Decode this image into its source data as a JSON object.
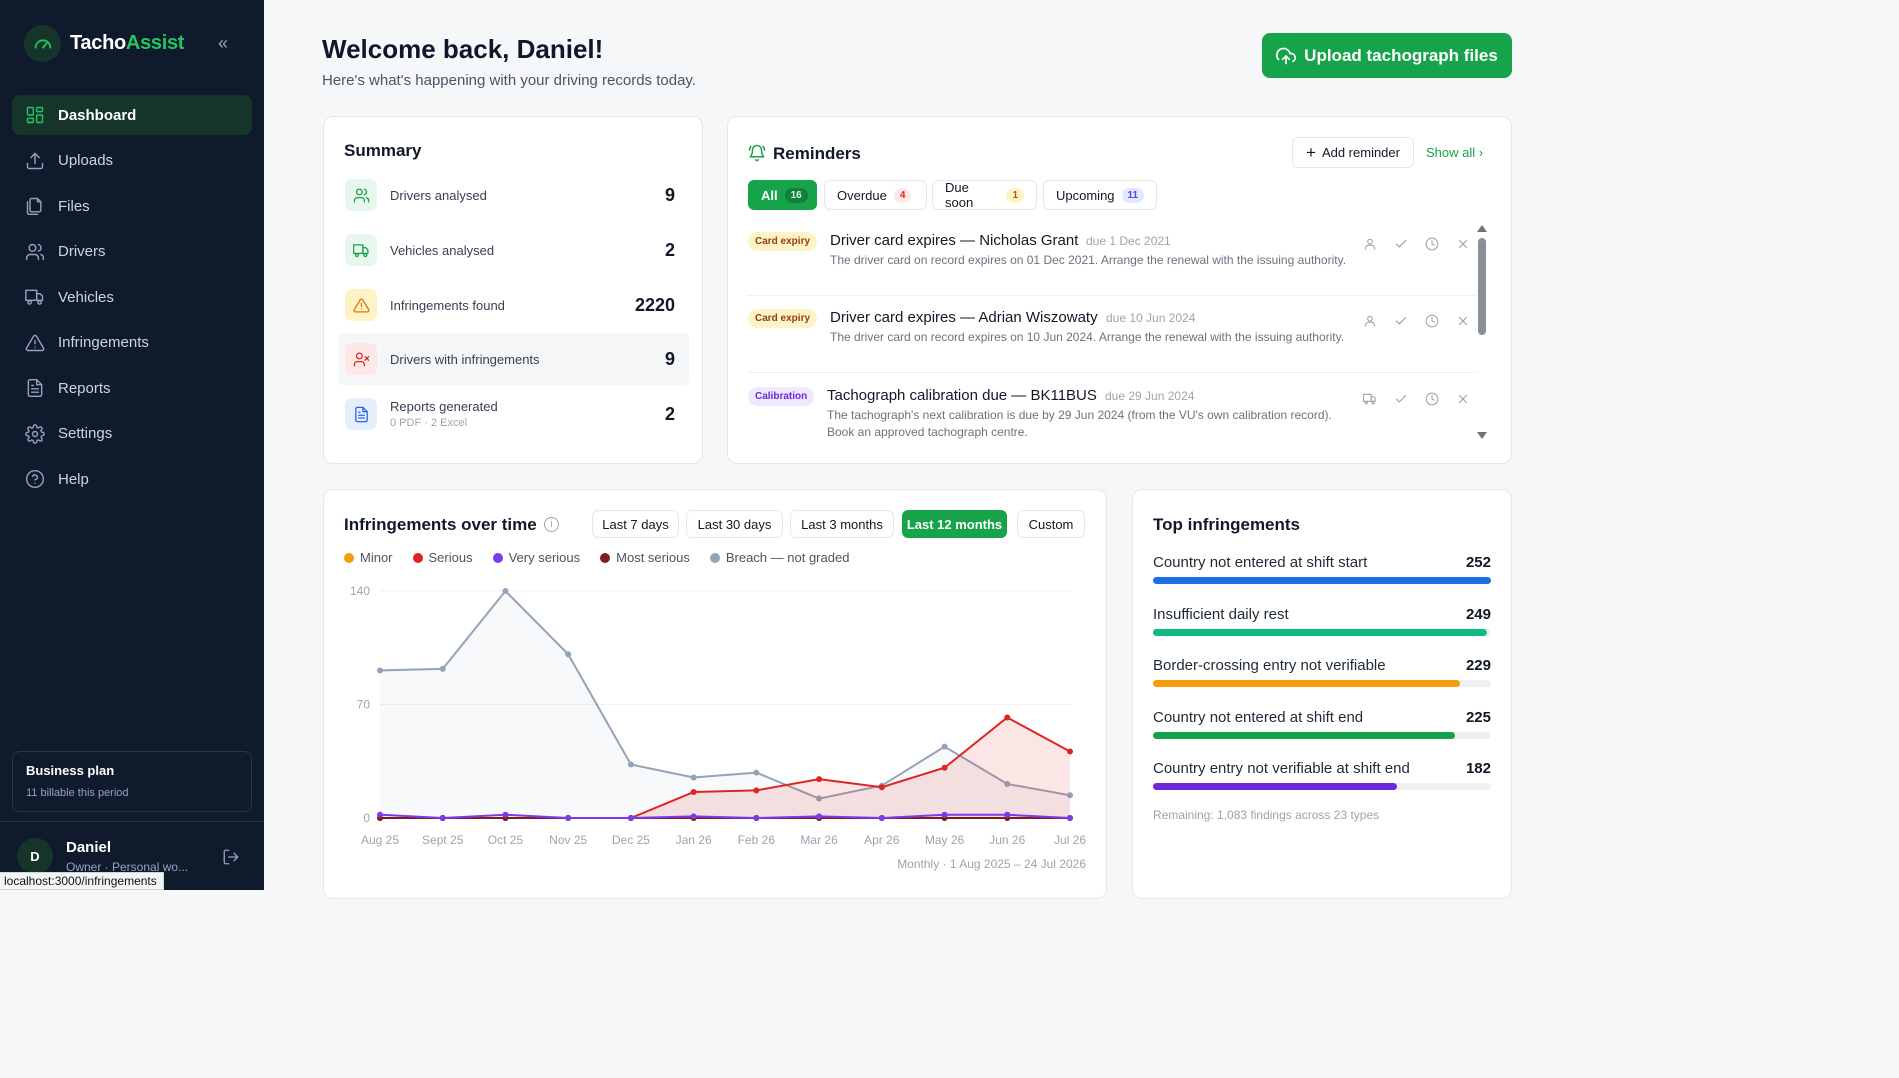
{
  "app": {
    "name_a": "Tacho",
    "name_b": "Assist"
  },
  "sidebar": {
    "items": [
      {
        "label": "Dashboard",
        "icon": "dashboard-icon",
        "active": true
      },
      {
        "label": "Uploads",
        "icon": "upload-icon"
      },
      {
        "label": "Files",
        "icon": "files-icon"
      },
      {
        "label": "Drivers",
        "icon": "drivers-icon"
      },
      {
        "label": "Vehicles",
        "icon": "truck-icon"
      },
      {
        "label": "Infringements",
        "icon": "warning-icon"
      },
      {
        "label": "Reports",
        "icon": "report-icon"
      },
      {
        "label": "Settings",
        "icon": "gear-icon"
      },
      {
        "label": "Help",
        "icon": "help-icon"
      }
    ],
    "plan": {
      "title": "Business plan",
      "sub": "11 billable this period"
    },
    "user": {
      "initial": "D",
      "name": "Daniel",
      "role": "Owner · Personal wo..."
    }
  },
  "status_url": "localhost:3000/infringements",
  "header": {
    "title": "Welcome back, Daniel!",
    "subtitle": "Here's what's happening with your driving records today.",
    "upload_label": "Upload tachograph files"
  },
  "summary": {
    "title": "Summary",
    "rows": [
      {
        "label": "Drivers analysed",
        "value": "9",
        "icon": "users-icon",
        "bg": "#e8f7ee",
        "color": "#16a34a"
      },
      {
        "label": "Vehicles analysed",
        "value": "2",
        "icon": "truck-icon",
        "bg": "#e8f7ee",
        "color": "#16a34a"
      },
      {
        "label": "Infringements found",
        "value": "2220",
        "icon": "warning-icon",
        "bg": "#fef3c7",
        "color": "#d97706"
      },
      {
        "label": "Drivers with infringements",
        "value": "9",
        "icon": "user-x-icon",
        "bg": "#fde8e8",
        "color": "#dc2626"
      },
      {
        "label": "Reports generated",
        "sub": "0 PDF · 2 Excel",
        "value": "2",
        "icon": "report-icon",
        "bg": "#e6eefc",
        "color": "#2563eb"
      }
    ]
  },
  "reminders": {
    "title": "Reminders",
    "add_label": "Add reminder",
    "show_all": "Show all",
    "filters": [
      {
        "label": "All",
        "count": "16",
        "active": true
      },
      {
        "label": "Overdue",
        "count": "4",
        "badge_bg": "#fde8e8",
        "badge_color": "#dc2626"
      },
      {
        "label": "Due soon",
        "count": "1",
        "badge_bg": "#fef3c7",
        "badge_color": "#b45309"
      },
      {
        "label": "Upcoming",
        "count": "11",
        "badge_bg": "#e0e7ff",
        "badge_color": "#4f46e5"
      }
    ],
    "items": [
      {
        "tag": "Card expiry",
        "tag_kind": "card",
        "title": "Driver card expires — Nicholas Grant",
        "due": "due 1 Dec 2021",
        "desc": "The driver card on record expires on 01 Dec 2021. Arrange the renewal with the issuing authority.",
        "subject_icon": "user-icon"
      },
      {
        "tag": "Card expiry",
        "tag_kind": "card",
        "title": "Driver card expires — Adrian Wiszowaty",
        "due": "due 10 Jun 2024",
        "desc": "The driver card on record expires on 10 Jun 2024. Arrange the renewal with the issuing authority.",
        "subject_icon": "user-icon"
      },
      {
        "tag": "Calibration",
        "tag_kind": "calibration",
        "title": "Tachograph calibration due — BK11BUS",
        "due": "due 29 Jun 2024",
        "desc": "The tachograph's next calibration is due by 29 Jun 2024 (from the VU's own calibration record). Book an approved tachograph centre.",
        "subject_icon": "truck-icon"
      }
    ]
  },
  "chart_card": {
    "title": "Infringements over time",
    "ranges": [
      {
        "label": "Last 7 days"
      },
      {
        "label": "Last 30 days"
      },
      {
        "label": "Last 3 months"
      },
      {
        "label": "Last 12 months",
        "active": true
      },
      {
        "label": "Custom"
      }
    ],
    "footer": "Monthly · 1 Aug 2025 – 24 Jul 2026"
  },
  "chart_data": {
    "type": "line",
    "x": [
      "Aug 25",
      "Sept 25",
      "Oct 25",
      "Nov 25",
      "Dec 25",
      "Jan 26",
      "Feb 26",
      "Mar 26",
      "Apr 26",
      "May 26",
      "Jun 26",
      "Jul 26"
    ],
    "ylim": [
      0,
      140
    ],
    "yticks": [
      0,
      70,
      140
    ],
    "grid": true,
    "legend_position": "top-left",
    "series": [
      {
        "name": "Minor",
        "color": "#f59e0b",
        "values": [
          0,
          0,
          0,
          0,
          0,
          0,
          0,
          0,
          0,
          0,
          0,
          0
        ]
      },
      {
        "name": "Serious",
        "color": "#dc2626",
        "values": [
          0,
          0,
          0,
          0,
          0,
          16,
          17,
          24,
          19,
          31,
          62,
          41
        ],
        "fill": true
      },
      {
        "name": "Very serious",
        "color": "#7c3aed",
        "values": [
          2,
          0,
          2,
          0,
          0,
          1,
          0,
          1,
          0,
          2,
          2,
          0
        ]
      },
      {
        "name": "Most serious",
        "color": "#7f1d1d",
        "values": [
          0,
          0,
          0,
          0,
          0,
          0,
          0,
          0,
          0,
          0,
          0,
          0
        ]
      },
      {
        "name": "Breach — not graded",
        "color": "#94a3b8",
        "values": [
          91,
          92,
          140,
          101,
          33,
          25,
          28,
          12,
          20,
          44,
          21,
          14
        ],
        "fill": true
      }
    ]
  },
  "top_infringements": {
    "title": "Top infringements",
    "max": 252,
    "items": [
      {
        "label": "Country not entered at shift start",
        "value": 252,
        "color": "#1d6fe8"
      },
      {
        "label": "Insufficient daily rest",
        "value": 249,
        "color": "#10b981"
      },
      {
        "label": "Border-crossing entry not verifiable",
        "value": 229,
        "color": "#f59e0b"
      },
      {
        "label": "Country not entered at shift end",
        "value": 225,
        "color": "#15a34a"
      },
      {
        "label": "Country entry not verifiable at shift end",
        "value": 182,
        "color": "#6d28d9"
      }
    ],
    "remaining": "Remaining: 1,083 findings across 23 types"
  }
}
